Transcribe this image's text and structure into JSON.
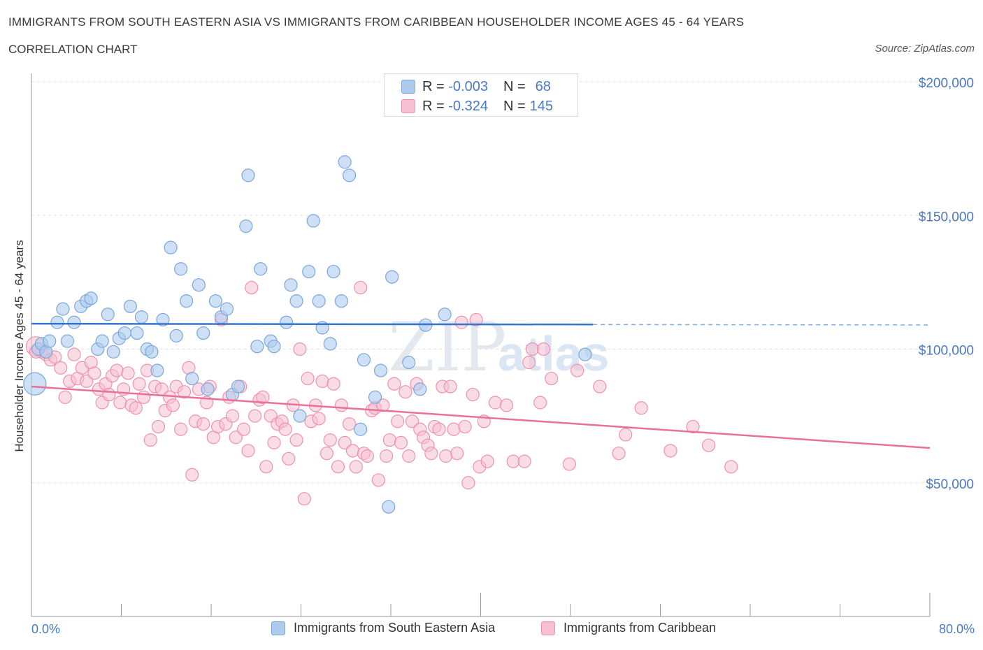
{
  "header": {
    "title": "IMMIGRANTS FROM SOUTH EASTERN ASIA VS IMMIGRANTS FROM CARIBBEAN HOUSEHOLDER INCOME AGES 45 - 64 YEARS",
    "subtitle": "CORRELATION CHART",
    "source": "Source: ZipAtlas.com"
  },
  "legend": {
    "r_label": "R =",
    "n_label": "N =",
    "series": [
      {
        "r": "-0.003",
        "n": "68"
      },
      {
        "r": "-0.324",
        "n": "145"
      }
    ]
  },
  "watermark": {
    "zip": "ZIP",
    "atlas": "atlas"
  },
  "colors": {
    "blue_fill": "#aecbee",
    "blue_stroke": "#7aa6dc",
    "blue_line": "#3374d1",
    "pink_fill": "#f6bfd2",
    "pink_stroke": "#ee91b0",
    "pink_line": "#e8709a",
    "tick_text": "#4a78c2"
  },
  "chart_data": {
    "type": "scatter",
    "title": "IMMIGRANTS FROM SOUTH EASTERN ASIA VS IMMIGRANTS FROM CARIBBEAN HOUSEHOLDER INCOME AGES 45 - 64 YEARS",
    "subtitle": "CORRELATION CHART",
    "xlabel": "",
    "ylabel": "Householder Income Ages 45 - 64 years",
    "xlim": [
      0,
      80
    ],
    "ylim": [
      0,
      215000
    ],
    "x_tick_labels": [
      "0.0%",
      "80.0%"
    ],
    "y_ticks": [
      50000,
      100000,
      150000,
      200000
    ],
    "y_tick_labels": [
      "$50,000",
      "$100,000",
      "$150,000",
      "$200,000"
    ],
    "grid": true,
    "legend_position": "top-center",
    "series": [
      {
        "name": "Immigrants from South Eastern Asia",
        "color": "#7aa6dc",
        "trend": {
          "x": [
            0,
            50
          ],
          "y": [
            109500,
            109200
          ],
          "dashed_extension_to": 80
        },
        "points": [
          [
            0.3,
            87000
          ],
          [
            0.6,
            100000
          ],
          [
            0.9,
            102000
          ],
          [
            1.3,
            99000
          ],
          [
            1.6,
            103000
          ],
          [
            2.3,
            110000
          ],
          [
            2.8,
            115000
          ],
          [
            3.2,
            103000
          ],
          [
            3.8,
            110000
          ],
          [
            4.4,
            116000
          ],
          [
            4.9,
            118000
          ],
          [
            5.3,
            119000
          ],
          [
            5.9,
            100000
          ],
          [
            6.3,
            103000
          ],
          [
            6.8,
            113000
          ],
          [
            7.3,
            99000
          ],
          [
            7.8,
            104000
          ],
          [
            8.3,
            106000
          ],
          [
            8.8,
            116000
          ],
          [
            9.4,
            106000
          ],
          [
            9.8,
            112000
          ],
          [
            10.3,
            100000
          ],
          [
            10.7,
            99000
          ],
          [
            11.2,
            92000
          ],
          [
            11.7,
            111000
          ],
          [
            12.4,
            138000
          ],
          [
            12.9,
            105000
          ],
          [
            13.3,
            130000
          ],
          [
            13.8,
            118000
          ],
          [
            14.3,
            89000
          ],
          [
            14.9,
            124000
          ],
          [
            15.3,
            106000
          ],
          [
            15.7,
            85000
          ],
          [
            16.4,
            118000
          ],
          [
            16.9,
            112000
          ],
          [
            17.4,
            115000
          ],
          [
            17.9,
            83000
          ],
          [
            18.4,
            86000
          ],
          [
            19.1,
            146000
          ],
          [
            19.3,
            165000
          ],
          [
            20.1,
            101000
          ],
          [
            20.4,
            130000
          ],
          [
            21.3,
            103000
          ],
          [
            21.6,
            101000
          ],
          [
            22.7,
            110000
          ],
          [
            23.1,
            124000
          ],
          [
            23.6,
            118000
          ],
          [
            23.9,
            75000
          ],
          [
            24.7,
            129000
          ],
          [
            25.1,
            148000
          ],
          [
            25.6,
            118000
          ],
          [
            25.9,
            108000
          ],
          [
            26.6,
            102000
          ],
          [
            26.9,
            129000
          ],
          [
            27.6,
            118000
          ],
          [
            27.9,
            170000
          ],
          [
            28.3,
            165000
          ],
          [
            29.6,
            96000
          ],
          [
            30.6,
            82000
          ],
          [
            31.1,
            92000
          ],
          [
            32.1,
            127000
          ],
          [
            31.8,
            41000
          ],
          [
            33.6,
            95000
          ],
          [
            34.6,
            85000
          ],
          [
            35.1,
            109000
          ],
          [
            36.8,
            113000
          ],
          [
            49.3,
            98000
          ],
          [
            29.3,
            70000
          ]
        ]
      },
      {
        "name": "Immigrants from Caribbean",
        "color": "#ee91b0",
        "trend": {
          "x": [
            0,
            80
          ],
          "y": [
            86000,
            63000
          ]
        },
        "points": [
          [
            0.4,
            101000
          ],
          [
            0.9,
            99000
          ],
          [
            1.3,
            98000
          ],
          [
            1.7,
            96000
          ],
          [
            2.1,
            97000
          ],
          [
            2.6,
            93000
          ],
          [
            3.0,
            82000
          ],
          [
            3.4,
            88000
          ],
          [
            3.8,
            98000
          ],
          [
            4.1,
            89000
          ],
          [
            4.5,
            93000
          ],
          [
            4.9,
            88000
          ],
          [
            5.3,
            95000
          ],
          [
            5.6,
            91000
          ],
          [
            6.0,
            85000
          ],
          [
            6.3,
            80000
          ],
          [
            6.6,
            87000
          ],
          [
            6.9,
            83000
          ],
          [
            7.2,
            90000
          ],
          [
            7.6,
            92000
          ],
          [
            7.9,
            80000
          ],
          [
            8.2,
            85000
          ],
          [
            8.6,
            91000
          ],
          [
            8.9,
            79000
          ],
          [
            9.3,
            78000
          ],
          [
            9.6,
            87000
          ],
          [
            10.0,
            82000
          ],
          [
            10.3,
            92000
          ],
          [
            10.6,
            66000
          ],
          [
            11.0,
            86000
          ],
          [
            11.3,
            71000
          ],
          [
            11.6,
            85000
          ],
          [
            11.9,
            77000
          ],
          [
            12.3,
            82000
          ],
          [
            12.6,
            79000
          ],
          [
            12.9,
            86000
          ],
          [
            13.3,
            70000
          ],
          [
            13.6,
            84000
          ],
          [
            14.0,
            93000
          ],
          [
            14.3,
            53000
          ],
          [
            14.6,
            73000
          ],
          [
            14.9,
            85000
          ],
          [
            15.3,
            72000
          ],
          [
            15.6,
            80000
          ],
          [
            15.9,
            86000
          ],
          [
            16.2,
            67000
          ],
          [
            16.6,
            71000
          ],
          [
            16.9,
            111000
          ],
          [
            17.3,
            72000
          ],
          [
            17.6,
            82000
          ],
          [
            17.9,
            75000
          ],
          [
            18.2,
            67000
          ],
          [
            18.6,
            86000
          ],
          [
            18.9,
            70000
          ],
          [
            19.3,
            62000
          ],
          [
            19.6,
            123000
          ],
          [
            19.9,
            75000
          ],
          [
            20.3,
            81000
          ],
          [
            20.6,
            82000
          ],
          [
            20.9,
            56000
          ],
          [
            21.3,
            75000
          ],
          [
            21.6,
            65000
          ],
          [
            21.9,
            72000
          ],
          [
            22.3,
            73000
          ],
          [
            22.6,
            70000
          ],
          [
            22.9,
            59000
          ],
          [
            23.3,
            79000
          ],
          [
            23.6,
            66000
          ],
          [
            23.9,
            100000
          ],
          [
            24.3,
            44000
          ],
          [
            24.6,
            89000
          ],
          [
            24.9,
            73000
          ],
          [
            25.3,
            79000
          ],
          [
            25.6,
            74000
          ],
          [
            25.9,
            88000
          ],
          [
            26.3,
            61000
          ],
          [
            26.6,
            66000
          ],
          [
            26.9,
            87000
          ],
          [
            27.3,
            56000
          ],
          [
            27.6,
            79000
          ],
          [
            27.9,
            65000
          ],
          [
            28.3,
            72000
          ],
          [
            28.6,
            62000
          ],
          [
            28.9,
            56000
          ],
          [
            29.3,
            123000
          ],
          [
            29.6,
            61000
          ],
          [
            29.9,
            60000
          ],
          [
            30.3,
            77000
          ],
          [
            30.6,
            78000
          ],
          [
            30.9,
            51000
          ],
          [
            31.3,
            79000
          ],
          [
            31.6,
            60000
          ],
          [
            31.9,
            66000
          ],
          [
            32.3,
            87000
          ],
          [
            32.6,
            73000
          ],
          [
            32.9,
            65000
          ],
          [
            33.3,
            84000
          ],
          [
            33.6,
            60000
          ],
          [
            33.9,
            73000
          ],
          [
            34.3,
            87000
          ],
          [
            34.6,
            70000
          ],
          [
            34.9,
            67000
          ],
          [
            35.3,
            64000
          ],
          [
            35.6,
            61000
          ],
          [
            35.9,
            71000
          ],
          [
            36.3,
            70000
          ],
          [
            36.6,
            86000
          ],
          [
            36.9,
            60000
          ],
          [
            37.3,
            86000
          ],
          [
            37.6,
            70000
          ],
          [
            37.9,
            61000
          ],
          [
            38.3,
            110000
          ],
          [
            38.6,
            71000
          ],
          [
            38.9,
            50000
          ],
          [
            39.3,
            83000
          ],
          [
            39.6,
            111000
          ],
          [
            39.9,
            56000
          ],
          [
            40.3,
            73000
          ],
          [
            40.6,
            58000
          ],
          [
            41.3,
            80000
          ],
          [
            42.3,
            79000
          ],
          [
            42.9,
            58000
          ],
          [
            43.9,
            58000
          ],
          [
            44.3,
            95000
          ],
          [
            44.6,
            100000
          ],
          [
            45.3,
            80000
          ],
          [
            45.6,
            100000
          ],
          [
            46.3,
            89000
          ],
          [
            47.9,
            57000
          ],
          [
            48.6,
            92000
          ],
          [
            50.6,
            86000
          ],
          [
            52.3,
            61000
          ],
          [
            52.9,
            68000
          ],
          [
            54.3,
            78000
          ],
          [
            56.9,
            62000
          ],
          [
            58.9,
            71000
          ],
          [
            60.3,
            64000
          ],
          [
            62.3,
            56000
          ],
          [
            0.4,
            99000
          ]
        ]
      }
    ]
  },
  "bottom_legend": [
    "Immigrants from South Eastern Asia",
    "Immigrants from Caribbean"
  ]
}
